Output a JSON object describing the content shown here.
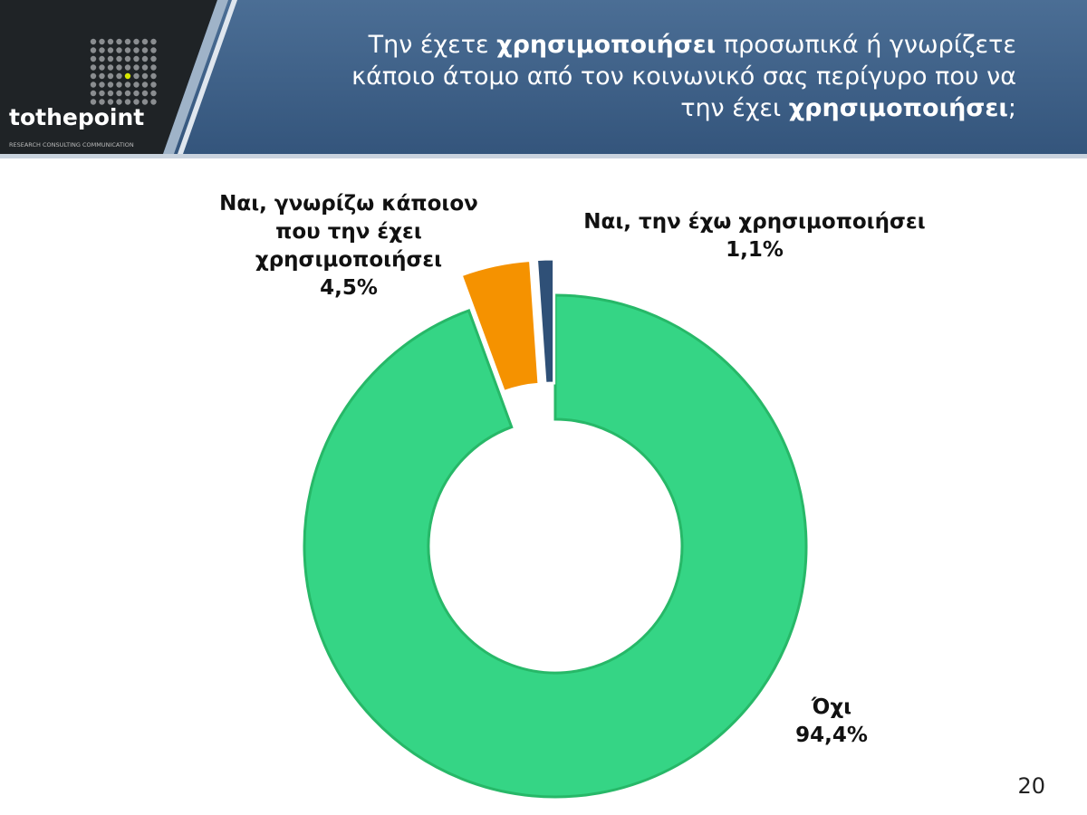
{
  "header": {
    "logo": "tothepoint",
    "tagline": "RESEARCH  CONSULTING  COMMUNICATION"
  },
  "chart_data": {
    "type": "donut",
    "title_parts": [
      {
        "text": "Την έχετε ",
        "bold": false
      },
      {
        "text": "χρησιμοποιήσει",
        "bold": true
      },
      {
        "text": " προσωπικά ή γνωρίζετε κάποιο άτομο από τον κοινωνικό σας περίγυρο που να την έχει ",
        "bold": false
      },
      {
        "text": "χρησιμοποιήσει",
        "bold": true
      },
      {
        "text": ";",
        "bold": false
      }
    ],
    "categories": [
      "Όχι",
      "Ναι, γνωρίζω κάποιον που την έχει χρησιμοποιήσει",
      "Ναι, την έχω χρησιμοποιήσει"
    ],
    "values": [
      94.4,
      4.5,
      1.1
    ],
    "value_labels": [
      "94,4%",
      "4,5%",
      "1,1%"
    ],
    "colors": [
      "#35d585",
      "#f59200",
      "#2f5077"
    ],
    "exploded": [
      false,
      true,
      true
    ]
  },
  "page_number": "20"
}
